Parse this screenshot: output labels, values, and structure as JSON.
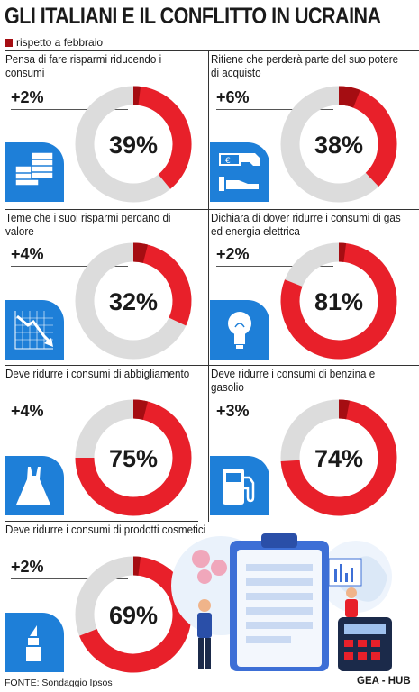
{
  "title": "GLI ITALIANI E IL CONFLITTO IN UCRAINA",
  "legend_label": "rispetto a febbraio",
  "colors": {
    "accent": "#e8202a",
    "previous": "#a50d12",
    "track": "#dcdcdc",
    "icon_bg": "#1e7fd8"
  },
  "chart_data": [
    {
      "type": "pie",
      "title": "Pensa di fare risparmi riducendo i consumi",
      "value": 39,
      "change": "+2%",
      "value_label": "39%",
      "icon": "money-stack-icon"
    },
    {
      "type": "pie",
      "title": "Ritiene che perderà parte del suo potere di acquisto",
      "value": 38,
      "change": "+6%",
      "value_label": "38%",
      "icon": "cash-hand-icon"
    },
    {
      "type": "pie",
      "title": "Teme che i suoi risparmi perdano di valore",
      "value": 32,
      "change": "+4%",
      "value_label": "32%",
      "icon": "declining-chart-icon"
    },
    {
      "type": "pie",
      "title": "Dichiara di dover ridurre i consumi di gas ed energia elettrica",
      "value": 81,
      "change": "+2%",
      "value_label": "81%",
      "icon": "lightbulb-icon"
    },
    {
      "type": "pie",
      "title": "Deve ridurre i consumi di abbigliamento",
      "value": 75,
      "change": "+4%",
      "value_label": "75%",
      "icon": "dress-icon"
    },
    {
      "type": "pie",
      "title": "Deve ridurre i consumi di benzina e gasolio",
      "value": 74,
      "change": "+3%",
      "value_label": "74%",
      "icon": "fuel-pump-icon"
    },
    {
      "type": "pie",
      "title": "Deve ridurre i consumi di prodotti cosmetici",
      "value": 69,
      "change": "+2%",
      "value_label": "69%",
      "icon": "lipstick-icon"
    }
  ],
  "source": "FONTE: Sondaggio Ipsos",
  "credit": "GEA - HUB"
}
